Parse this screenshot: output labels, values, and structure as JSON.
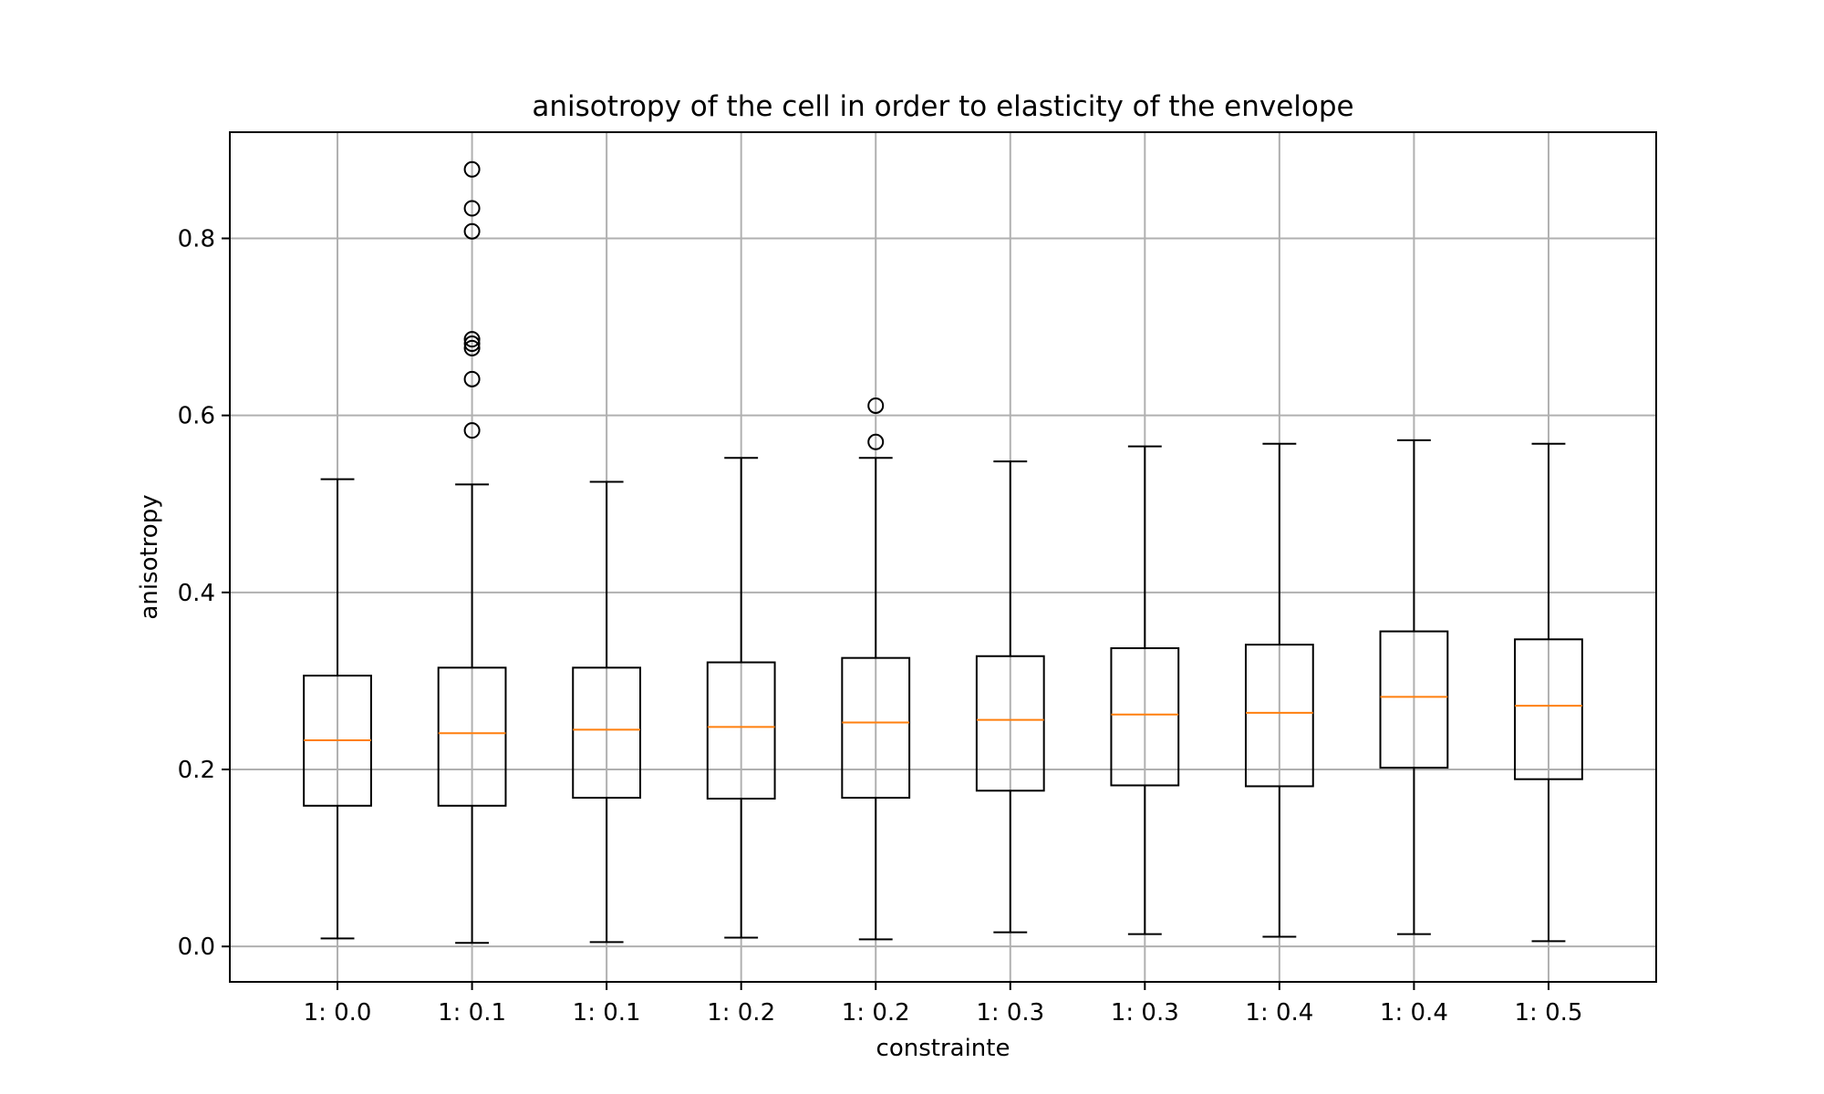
{
  "chart_data": {
    "type": "boxplot",
    "title": "anisotropy of the cell in order to elasticity of the envelope",
    "xlabel": "constrainte",
    "ylabel": "anisotropy",
    "ylim": [
      -0.04,
      0.92
    ],
    "yticks": [
      0.0,
      0.2,
      0.4,
      0.6,
      0.8
    ],
    "ytick_labels": [
      "0.0",
      "0.2",
      "0.4",
      "0.6",
      "0.8"
    ],
    "grid": true,
    "colors": {
      "box": "#000000",
      "median": "#ff7f0e",
      "grid": "#b0b0b0"
    },
    "categories": [
      "1: 0.0",
      "1: 0.1",
      "1: 0.1",
      "1: 0.2",
      "1: 0.2",
      "1: 0.3",
      "1: 0.3",
      "1: 0.4",
      "1: 0.4",
      "1: 0.5"
    ],
    "boxes": [
      {
        "whisker_low": 0.009,
        "q1": 0.159,
        "median": 0.233,
        "q3": 0.306,
        "whisker_high": 0.528,
        "outliers": []
      },
      {
        "whisker_low": 0.004,
        "q1": 0.159,
        "median": 0.241,
        "q3": 0.315,
        "whisker_high": 0.522,
        "outliers": [
          0.583,
          0.641,
          0.676,
          0.681,
          0.686,
          0.808,
          0.834,
          0.878
        ]
      },
      {
        "whisker_low": 0.005,
        "q1": 0.168,
        "median": 0.245,
        "q3": 0.315,
        "whisker_high": 0.525,
        "outliers": []
      },
      {
        "whisker_low": 0.01,
        "q1": 0.167,
        "median": 0.248,
        "q3": 0.321,
        "whisker_high": 0.552,
        "outliers": []
      },
      {
        "whisker_low": 0.008,
        "q1": 0.168,
        "median": 0.253,
        "q3": 0.326,
        "whisker_high": 0.552,
        "outliers": [
          0.57,
          0.611
        ]
      },
      {
        "whisker_low": 0.016,
        "q1": 0.176,
        "median": 0.256,
        "q3": 0.328,
        "whisker_high": 0.548,
        "outliers": []
      },
      {
        "whisker_low": 0.014,
        "q1": 0.182,
        "median": 0.262,
        "q3": 0.337,
        "whisker_high": 0.565,
        "outliers": []
      },
      {
        "whisker_low": 0.011,
        "q1": 0.181,
        "median": 0.264,
        "q3": 0.341,
        "whisker_high": 0.568,
        "outliers": []
      },
      {
        "whisker_low": 0.014,
        "q1": 0.202,
        "median": 0.282,
        "q3": 0.356,
        "whisker_high": 0.572,
        "outliers": []
      },
      {
        "whisker_low": 0.006,
        "q1": 0.189,
        "median": 0.272,
        "q3": 0.347,
        "whisker_high": 0.568,
        "outliers": []
      }
    ]
  }
}
